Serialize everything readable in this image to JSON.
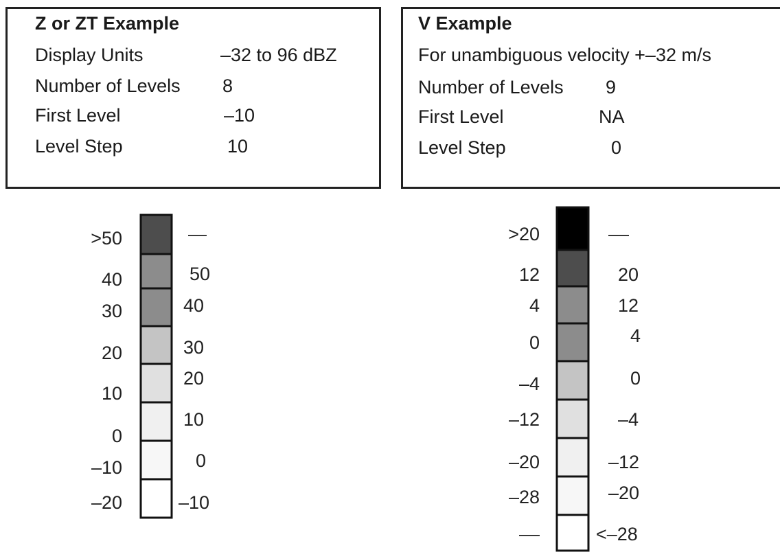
{
  "z_example": {
    "title": "Z or ZT Example",
    "rows": [
      {
        "label": "Display Units",
        "value": "–32 to 96 dBZ"
      },
      {
        "label": "Number of Levels",
        "value": "8"
      },
      {
        "label": "First Level",
        "value": "–10"
      },
      {
        "label": "Level Step",
        "value": "10"
      }
    ]
  },
  "v_example": {
    "title": "V Example",
    "rows": [
      {
        "label": "For unambiguous velocity +–32 m/s",
        "value": ""
      },
      {
        "label": "Number of Levels",
        "value": "9"
      },
      {
        "label": "First Level",
        "value": "NA"
      },
      {
        "label": "Level Step",
        "value": "0"
      }
    ]
  },
  "z_scale": {
    "levels": [
      {
        "fill": "#4d4d4d",
        "left": ">50",
        "right": "—"
      },
      {
        "fill": "#8c8c8c",
        "left": "40",
        "right": "50"
      },
      {
        "fill": "#8c8c8c",
        "left": "30",
        "right": "40"
      },
      {
        "fill": "#c4c4c4",
        "left": "20",
        "right": "30"
      },
      {
        "fill": "#e0e0e0",
        "left": "10",
        "right": "20"
      },
      {
        "fill": "#f0f0f0",
        "left": "0",
        "right": "10"
      },
      {
        "fill": "#f7f7f7",
        "left": "–10",
        "right": "0"
      },
      {
        "fill": "#ffffff",
        "left": "–20",
        "right": "–10"
      }
    ]
  },
  "v_scale": {
    "levels": [
      {
        "fill": "#000000",
        "left": ">20",
        "right": "––"
      },
      {
        "fill": "#4d4d4d",
        "left": "12",
        "right": "20"
      },
      {
        "fill": "#8c8c8c",
        "left": "4",
        "right": "12"
      },
      {
        "fill": "#8c8c8c",
        "left": "0",
        "right": "4"
      },
      {
        "fill": "#c4c4c4",
        "left": "–4",
        "right": "0"
      },
      {
        "fill": "#e0e0e0",
        "left": "–12",
        "right": "–4"
      },
      {
        "fill": "#f0f0f0",
        "left": "–20",
        "right": "–12"
      },
      {
        "fill": "#f7f7f7",
        "left": "–28",
        "right": "–20"
      },
      {
        "fill": "#ffffff",
        "left": "––",
        "right": "<–28"
      }
    ]
  }
}
